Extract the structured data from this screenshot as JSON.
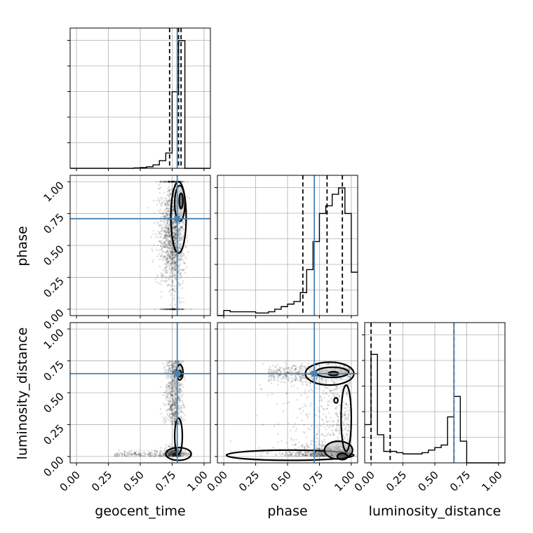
{
  "chart_data": {
    "type": "corner",
    "parameters": [
      "geocent_time",
      "phase",
      "luminosity_distance"
    ],
    "axis_range": [
      -0.05,
      1.05
    ],
    "ticks": [
      0.0,
      0.25,
      0.5,
      0.75,
      1.0
    ],
    "tick_labels": [
      "0.00",
      "0.25",
      "0.50",
      "0.75",
      "1.00"
    ],
    "grid": true,
    "colors": {
      "truth": "#4682b4",
      "histogram": "#000000",
      "contour": "#000000"
    },
    "truths": {
      "geocent_time": 0.79,
      "phase": 0.71,
      "luminosity_distance": 0.65
    },
    "quantile_lines": {
      "geocent_time": [
        0.73,
        0.8,
        0.82
      ],
      "phase": [
        0.62,
        0.81,
        0.93
      ],
      "luminosity_distance": [
        0.0,
        0.15,
        0.65
      ]
    },
    "marginals": {
      "bin_edges": [
        -0.05,
        0.0,
        0.05,
        0.1,
        0.15,
        0.2,
        0.25,
        0.3,
        0.35,
        0.4,
        0.45,
        0.5,
        0.55,
        0.6,
        0.65,
        0.7,
        0.75,
        0.8,
        0.85,
        0.9,
        0.95,
        1.0,
        1.05
      ],
      "geocent_time": [
        0,
        0,
        0,
        0,
        0,
        0,
        0,
        0,
        0,
        0,
        0.003,
        0.006,
        0.012,
        0.027,
        0.06,
        0.12,
        0.6,
        1.0,
        0,
        0,
        0,
        0
      ],
      "phase": [
        0,
        0.04,
        0.03,
        0.03,
        0.03,
        0.03,
        0.02,
        0.02,
        0.03,
        0.05,
        0.07,
        0.09,
        0.11,
        0.18,
        0.36,
        0.58,
        0.8,
        0.86,
        0.95,
        1.0,
        0.8,
        0.34
      ],
      "luminosity_distance": [
        0.3,
        0.85,
        0.22,
        0.09,
        0.09,
        0.08,
        0.07,
        0.07,
        0.07,
        0.08,
        0.1,
        0.12,
        0.14,
        0.36,
        0.52,
        0.17,
        0,
        0,
        0,
        0,
        0,
        0
      ]
    },
    "scatter_description": "2-D posterior samples with density contours in each lower-triangle panel"
  }
}
